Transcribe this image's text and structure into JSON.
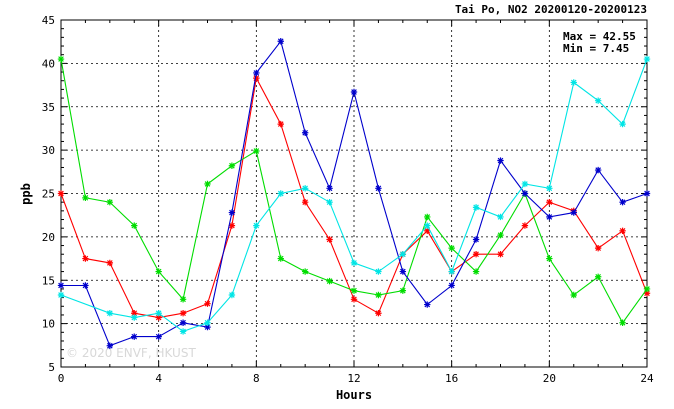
{
  "chart_data": {
    "type": "line",
    "title": "Tai Po, NO2 20200120-20200123",
    "xlabel": "Hours",
    "ylabel": "ppb",
    "xlim": [
      0,
      24
    ],
    "ylim": [
      5,
      45
    ],
    "x_ticks": [
      0,
      4,
      8,
      12,
      16,
      20,
      24
    ],
    "y_ticks": [
      5,
      10,
      15,
      20,
      25,
      30,
      35,
      40,
      45
    ],
    "grid": true,
    "stats": {
      "max": "Max = 42.55",
      "min": "Min =  7.45"
    },
    "watermark": "© 2020 ENVF, HKUST",
    "x": [
      0,
      1,
      2,
      3,
      4,
      5,
      6,
      7,
      8,
      9,
      10,
      11,
      12,
      13,
      14,
      15,
      16,
      17,
      18,
      19,
      20,
      21,
      22,
      23,
      24
    ],
    "series": [
      {
        "color": "#ff0000",
        "values": [
          25.0,
          17.5,
          17.0,
          11.2,
          10.7,
          11.2,
          12.3,
          21.3,
          38.3,
          33.0,
          24.0,
          19.7,
          12.8,
          11.2,
          18.0,
          20.7,
          16.0,
          18.0,
          18.0,
          21.3,
          24.0,
          23.0,
          18.7,
          20.7,
          13.5
        ]
      },
      {
        "color": "#00dd00",
        "values": [
          40.5,
          24.5,
          24.0,
          21.3,
          16.0,
          12.8,
          26.1,
          28.2,
          29.9,
          17.5,
          16.0,
          14.9,
          13.8,
          13.3,
          13.8,
          22.3,
          18.7,
          16.0,
          20.2,
          25.0,
          17.5,
          13.3,
          15.4,
          10.1,
          14.0
        ]
      },
      {
        "color": "#0000cc",
        "values": [
          14.4,
          14.4,
          7.45,
          8.5,
          8.5,
          10.1,
          9.6,
          22.8,
          38.9,
          42.55,
          32.0,
          25.6,
          36.7,
          25.6,
          16.0,
          12.2,
          14.4,
          19.7,
          28.8,
          25.0,
          22.3,
          22.8,
          27.7,
          24.0,
          25.0
        ]
      },
      {
        "color": "#00e5e5",
        "values": [
          13.3,
          null,
          11.2,
          10.7,
          11.2,
          9.1,
          10.1,
          13.3,
          21.3,
          25.0,
          25.6,
          24.0,
          17.0,
          16.0,
          18.0,
          21.3,
          16.0,
          23.4,
          22.3,
          26.1,
          25.6,
          37.8,
          35.7,
          33.0,
          40.5
        ]
      }
    ]
  }
}
